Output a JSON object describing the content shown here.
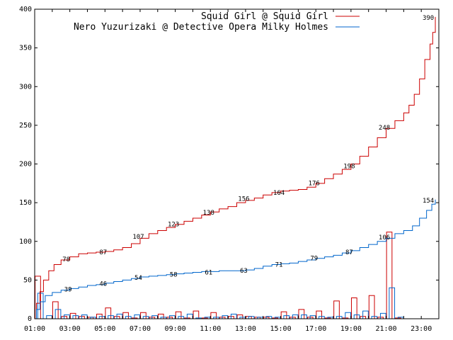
{
  "chart_data": {
    "type": "line",
    "x_ticks": [
      "01:00",
      "03:00",
      "05:00",
      "07:00",
      "09:00",
      "11:00",
      "13:00",
      "15:00",
      "17:00",
      "19:00",
      "21:00",
      "23:00"
    ],
    "y_ticks": [
      "0",
      "50",
      "100",
      "150",
      "200",
      "250",
      "300",
      "350",
      "400"
    ],
    "xlim": [
      1,
      24
    ],
    "ylim": [
      0,
      400
    ],
    "grid": false,
    "legend_position": "top-right",
    "series": [
      {
        "name": "Squid Girl @ Squid Girl",
        "color": "#cc0000",
        "cumulative": [
          [
            1.0,
            0
          ],
          [
            1.1,
            20
          ],
          [
            1.3,
            35
          ],
          [
            1.5,
            50
          ],
          [
            1.8,
            62
          ],
          [
            2.1,
            70
          ],
          [
            2.5,
            76
          ],
          [
            3.0,
            80
          ],
          [
            3.5,
            84
          ],
          [
            4.0,
            85
          ],
          [
            4.5,
            86
          ],
          [
            5.0,
            87
          ],
          [
            5.5,
            89
          ],
          [
            6.0,
            92
          ],
          [
            6.5,
            97
          ],
          [
            7.0,
            104
          ],
          [
            7.5,
            110
          ],
          [
            8.0,
            114
          ],
          [
            8.5,
            118
          ],
          [
            9.0,
            122
          ],
          [
            9.5,
            126
          ],
          [
            10.0,
            130
          ],
          [
            10.5,
            134
          ],
          [
            11.0,
            138
          ],
          [
            11.5,
            142
          ],
          [
            12.0,
            145
          ],
          [
            12.5,
            150
          ],
          [
            13.0,
            153
          ],
          [
            13.5,
            156
          ],
          [
            14.0,
            160
          ],
          [
            14.5,
            163
          ],
          [
            15.0,
            165
          ],
          [
            15.5,
            166
          ],
          [
            16.0,
            167
          ],
          [
            16.5,
            170
          ],
          [
            17.0,
            175
          ],
          [
            17.5,
            181
          ],
          [
            18.0,
            187
          ],
          [
            18.5,
            193
          ],
          [
            19.0,
            200
          ],
          [
            19.5,
            210
          ],
          [
            20.0,
            222
          ],
          [
            20.5,
            234
          ],
          [
            21.0,
            246
          ],
          [
            21.5,
            256
          ],
          [
            22.0,
            266
          ],
          [
            22.3,
            276
          ],
          [
            22.6,
            290
          ],
          [
            22.9,
            310
          ],
          [
            23.2,
            335
          ],
          [
            23.5,
            355
          ],
          [
            23.65,
            370
          ],
          [
            23.8,
            390
          ]
        ],
        "point_labels": [
          {
            "x": 2.8,
            "y": 78,
            "text": "78"
          },
          {
            "x": 4.9,
            "y": 87,
            "text": "87"
          },
          {
            "x": 6.9,
            "y": 107,
            "text": "107"
          },
          {
            "x": 8.9,
            "y": 123,
            "text": "123"
          },
          {
            "x": 10.9,
            "y": 138,
            "text": "138"
          },
          {
            "x": 12.9,
            "y": 156,
            "text": "156"
          },
          {
            "x": 14.9,
            "y": 164,
            "text": "164"
          },
          {
            "x": 16.9,
            "y": 176,
            "text": "176"
          },
          {
            "x": 18.9,
            "y": 198,
            "text": "198"
          },
          {
            "x": 20.9,
            "y": 248,
            "text": "248"
          },
          {
            "x": 23.4,
            "y": 390,
            "text": "390"
          }
        ],
        "hourly": [
          55,
          0,
          22,
          3,
          7,
          3,
          2,
          6,
          14,
          3,
          8,
          1,
          8,
          2,
          6,
          2,
          9,
          1,
          10,
          1,
          8,
          2,
          3,
          5,
          3,
          2,
          2,
          1,
          9,
          2,
          12,
          2,
          10,
          1,
          23,
          1,
          27,
          3,
          30,
          2,
          112,
          1
        ]
      },
      {
        "name": "Nero Yuzurizaki @ Detective Opera Milky Holmes",
        "color": "#0066cc",
        "cumulative": [
          [
            1.0,
            0
          ],
          [
            1.1,
            12
          ],
          [
            1.3,
            22
          ],
          [
            1.6,
            30
          ],
          [
            2.0,
            34
          ],
          [
            2.5,
            37
          ],
          [
            3.0,
            39
          ],
          [
            3.5,
            41
          ],
          [
            4.0,
            43
          ],
          [
            4.5,
            44
          ],
          [
            5.0,
            46
          ],
          [
            5.5,
            48
          ],
          [
            6.0,
            50
          ],
          [
            6.5,
            52
          ],
          [
            7.0,
            54
          ],
          [
            7.5,
            55
          ],
          [
            8.0,
            56
          ],
          [
            8.5,
            57
          ],
          [
            9.0,
            58
          ],
          [
            9.5,
            59
          ],
          [
            10.0,
            60
          ],
          [
            10.5,
            61
          ],
          [
            11.0,
            61
          ],
          [
            11.5,
            62
          ],
          [
            12.0,
            62
          ],
          [
            12.5,
            62
          ],
          [
            13.0,
            63
          ],
          [
            13.5,
            65
          ],
          [
            14.0,
            68
          ],
          [
            14.5,
            70
          ],
          [
            15.0,
            71
          ],
          [
            15.5,
            72
          ],
          [
            16.0,
            74
          ],
          [
            16.5,
            76
          ],
          [
            17.0,
            78
          ],
          [
            17.5,
            80
          ],
          [
            18.0,
            82
          ],
          [
            18.5,
            85
          ],
          [
            19.0,
            88
          ],
          [
            19.5,
            92
          ],
          [
            20.0,
            96
          ],
          [
            20.5,
            100
          ],
          [
            21.0,
            104
          ],
          [
            21.5,
            110
          ],
          [
            22.0,
            114
          ],
          [
            22.5,
            120
          ],
          [
            22.9,
            130
          ],
          [
            23.3,
            140
          ],
          [
            23.6,
            148
          ],
          [
            23.8,
            154
          ]
        ],
        "point_labels": [
          {
            "x": 2.9,
            "y": 39,
            "text": "39"
          },
          {
            "x": 4.9,
            "y": 46,
            "text": "46"
          },
          {
            "x": 6.9,
            "y": 54,
            "text": "54"
          },
          {
            "x": 8.9,
            "y": 58,
            "text": "58"
          },
          {
            "x": 10.9,
            "y": 61,
            "text": "61"
          },
          {
            "x": 12.9,
            "y": 63,
            "text": "63"
          },
          {
            "x": 14.9,
            "y": 71,
            "text": "71"
          },
          {
            "x": 16.9,
            "y": 79,
            "text": "79"
          },
          {
            "x": 18.9,
            "y": 87,
            "text": "87"
          },
          {
            "x": 20.9,
            "y": 106,
            "text": "106"
          },
          {
            "x": 23.4,
            "y": 154,
            "text": "154"
          }
        ],
        "hourly": [
          33,
          4,
          12,
          5,
          4,
          5,
          2,
          3,
          4,
          6,
          3,
          5,
          3,
          4,
          2,
          4,
          3,
          6,
          1,
          2,
          2,
          4,
          6,
          2,
          3,
          2,
          3,
          2,
          4,
          5,
          5,
          4,
          3,
          2,
          3,
          8,
          5,
          10,
          3,
          7,
          40,
          2
        ]
      }
    ]
  }
}
